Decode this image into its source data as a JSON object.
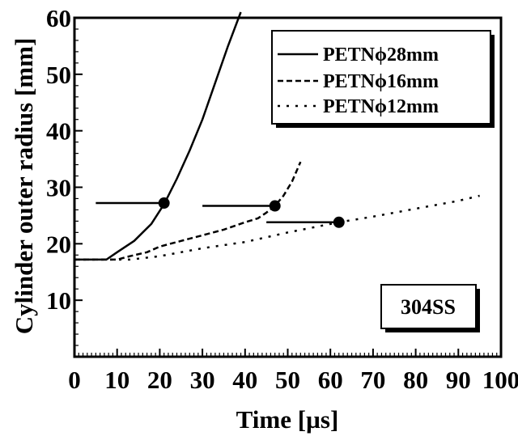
{
  "chart_data": {
    "type": "line",
    "xlabel": "Time [µs]",
    "ylabel": "Cylinder outer radius [mm]",
    "xlim": [
      0,
      100
    ],
    "ylim": [
      0,
      60
    ],
    "x_ticks": [
      "0",
      "10",
      "20",
      "30",
      "40",
      "50",
      "60",
      "70",
      "80",
      "90",
      "100"
    ],
    "y_ticks": [
      "10",
      "20",
      "30",
      "40",
      "50",
      "60"
    ],
    "grid": false,
    "legend_position": "top-right",
    "annotation": "304SS",
    "series": [
      {
        "name": "PETNϕ28mm",
        "style": "solid",
        "x": [
          0,
          7.5,
          10,
          14,
          18,
          21,
          24,
          27,
          30,
          33,
          36,
          39
        ],
        "y": [
          17.2,
          17.2,
          18.5,
          20.5,
          23.5,
          27,
          31.5,
          36.5,
          42,
          48.5,
          55,
          61
        ]
      },
      {
        "name": "PETNϕ16mm",
        "style": "dashed",
        "x": [
          0,
          10,
          13,
          17,
          20,
          25,
          30,
          35,
          40,
          43,
          45,
          47,
          49,
          51,
          53
        ],
        "y": [
          17.2,
          17.2,
          17.8,
          18.5,
          19.5,
          20.5,
          21.5,
          22.5,
          23.8,
          24.5,
          25.5,
          26.7,
          28.5,
          31,
          34.5
        ]
      },
      {
        "name": "PETNϕ12mm",
        "style": "dotted",
        "x": [
          0,
          13,
          20,
          30,
          40,
          50,
          62,
          70,
          80,
          90,
          95
        ],
        "y": [
          17.2,
          17.2,
          17.8,
          19.2,
          20.3,
          22,
          23.8,
          24.8,
          26.2,
          27.6,
          28.5
        ]
      }
    ],
    "markers": [
      {
        "x": 21,
        "y": 27.2,
        "line_from_x": 5
      },
      {
        "x": 47,
        "y": 26.7,
        "line_from_x": 30
      },
      {
        "x": 62,
        "y": 23.8,
        "line_from_x": 45
      }
    ]
  }
}
